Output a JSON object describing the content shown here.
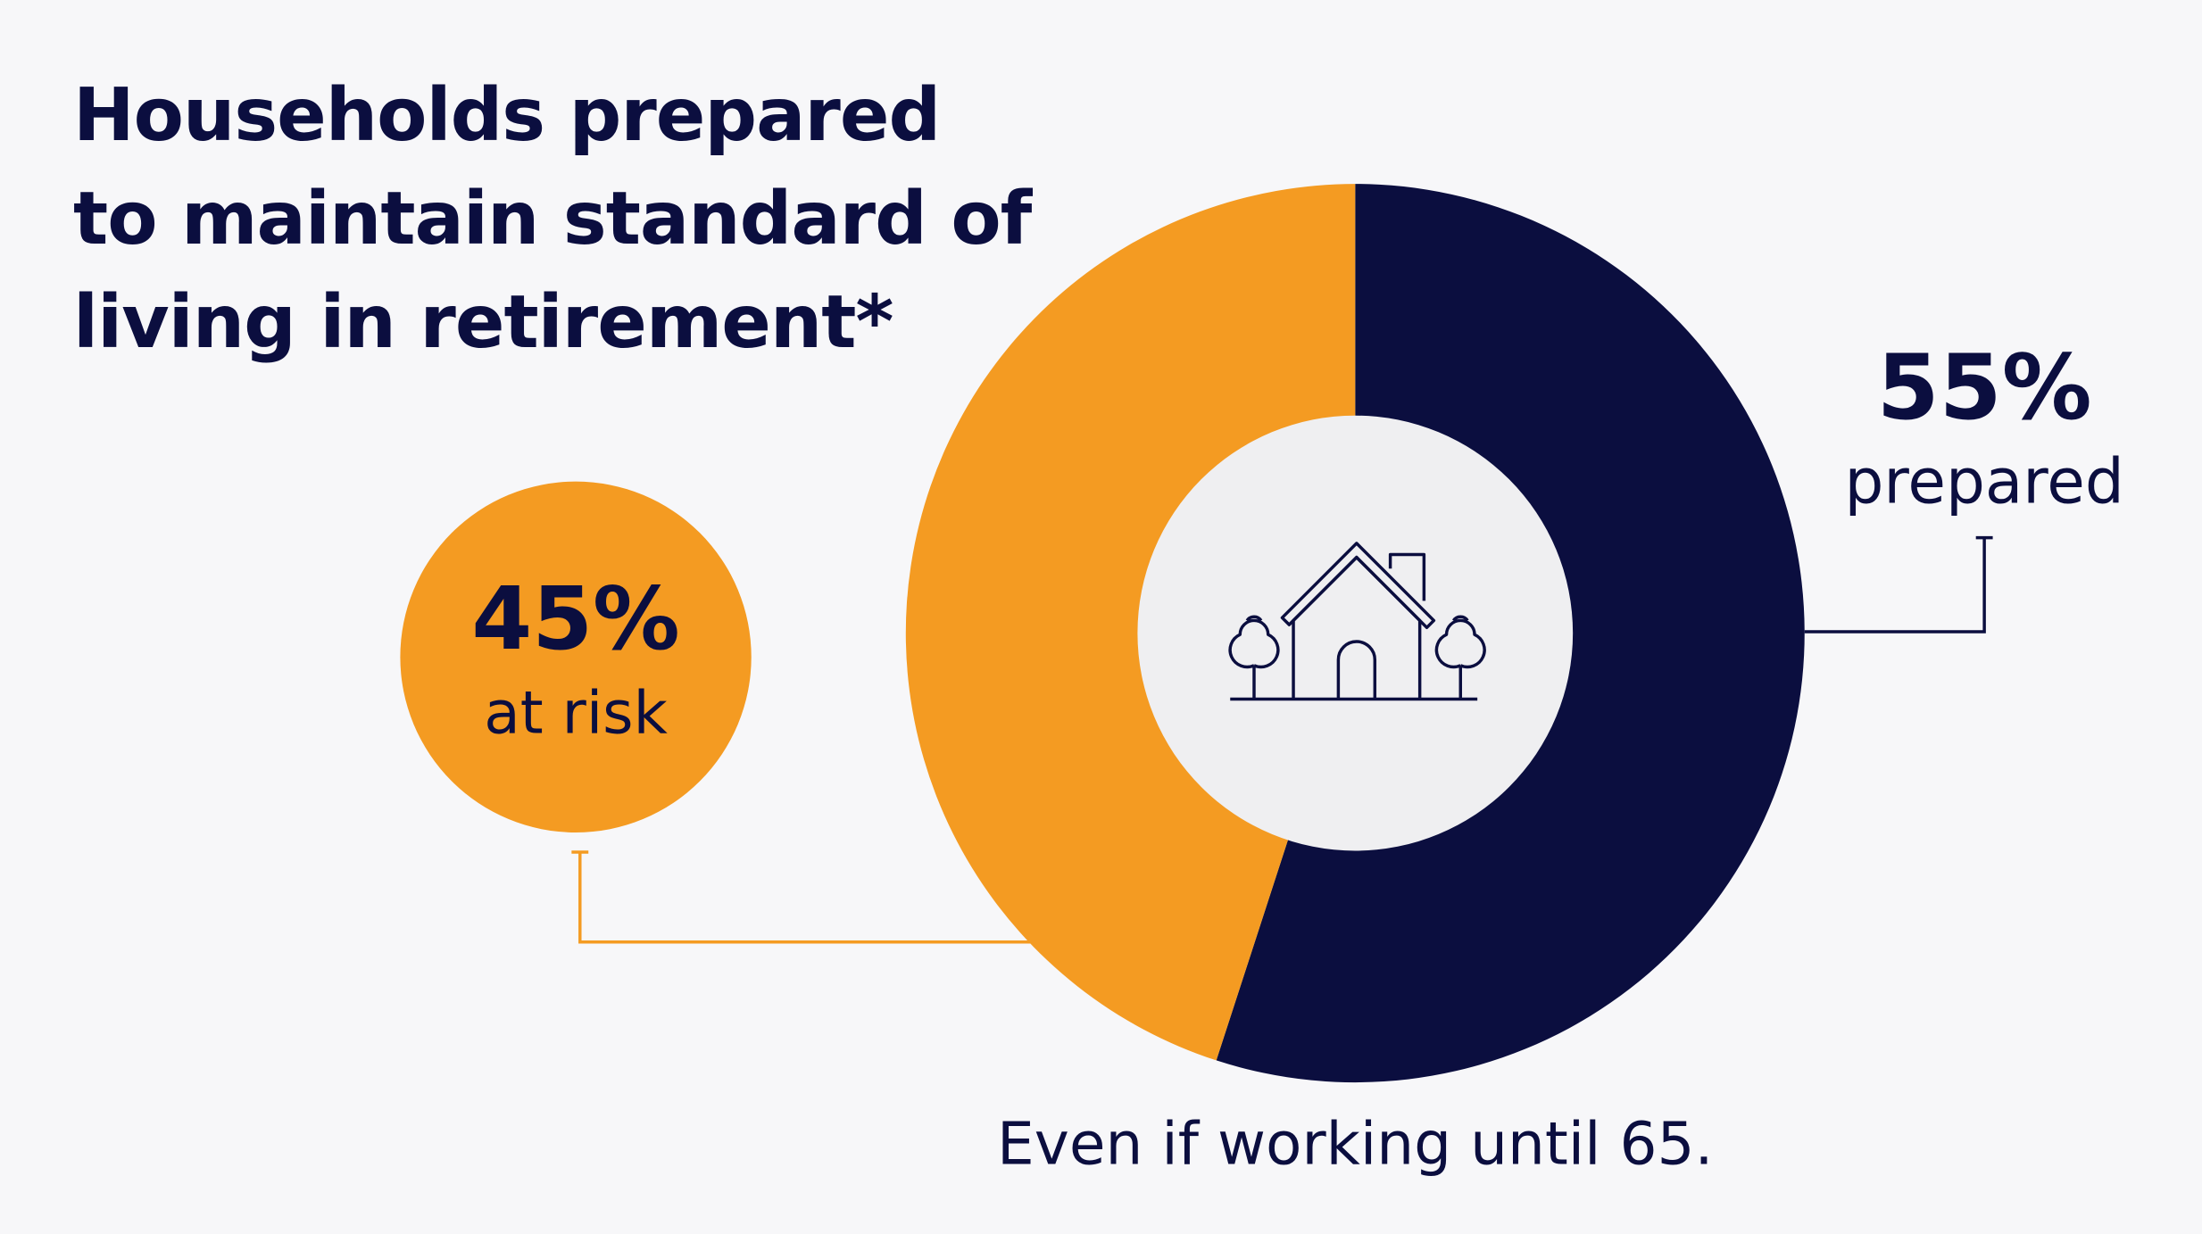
{
  "chart_data": {
    "type": "donut",
    "title": "Households prepared to maintain standard of living in retirement*",
    "categories": [
      "prepared",
      "at risk"
    ],
    "values": [
      55,
      45
    ],
    "value_labels": [
      "55%",
      "45%"
    ],
    "colors": [
      "#0b0e3f",
      "#f49b22"
    ],
    "footnote": "Even if working until 65."
  }
}
